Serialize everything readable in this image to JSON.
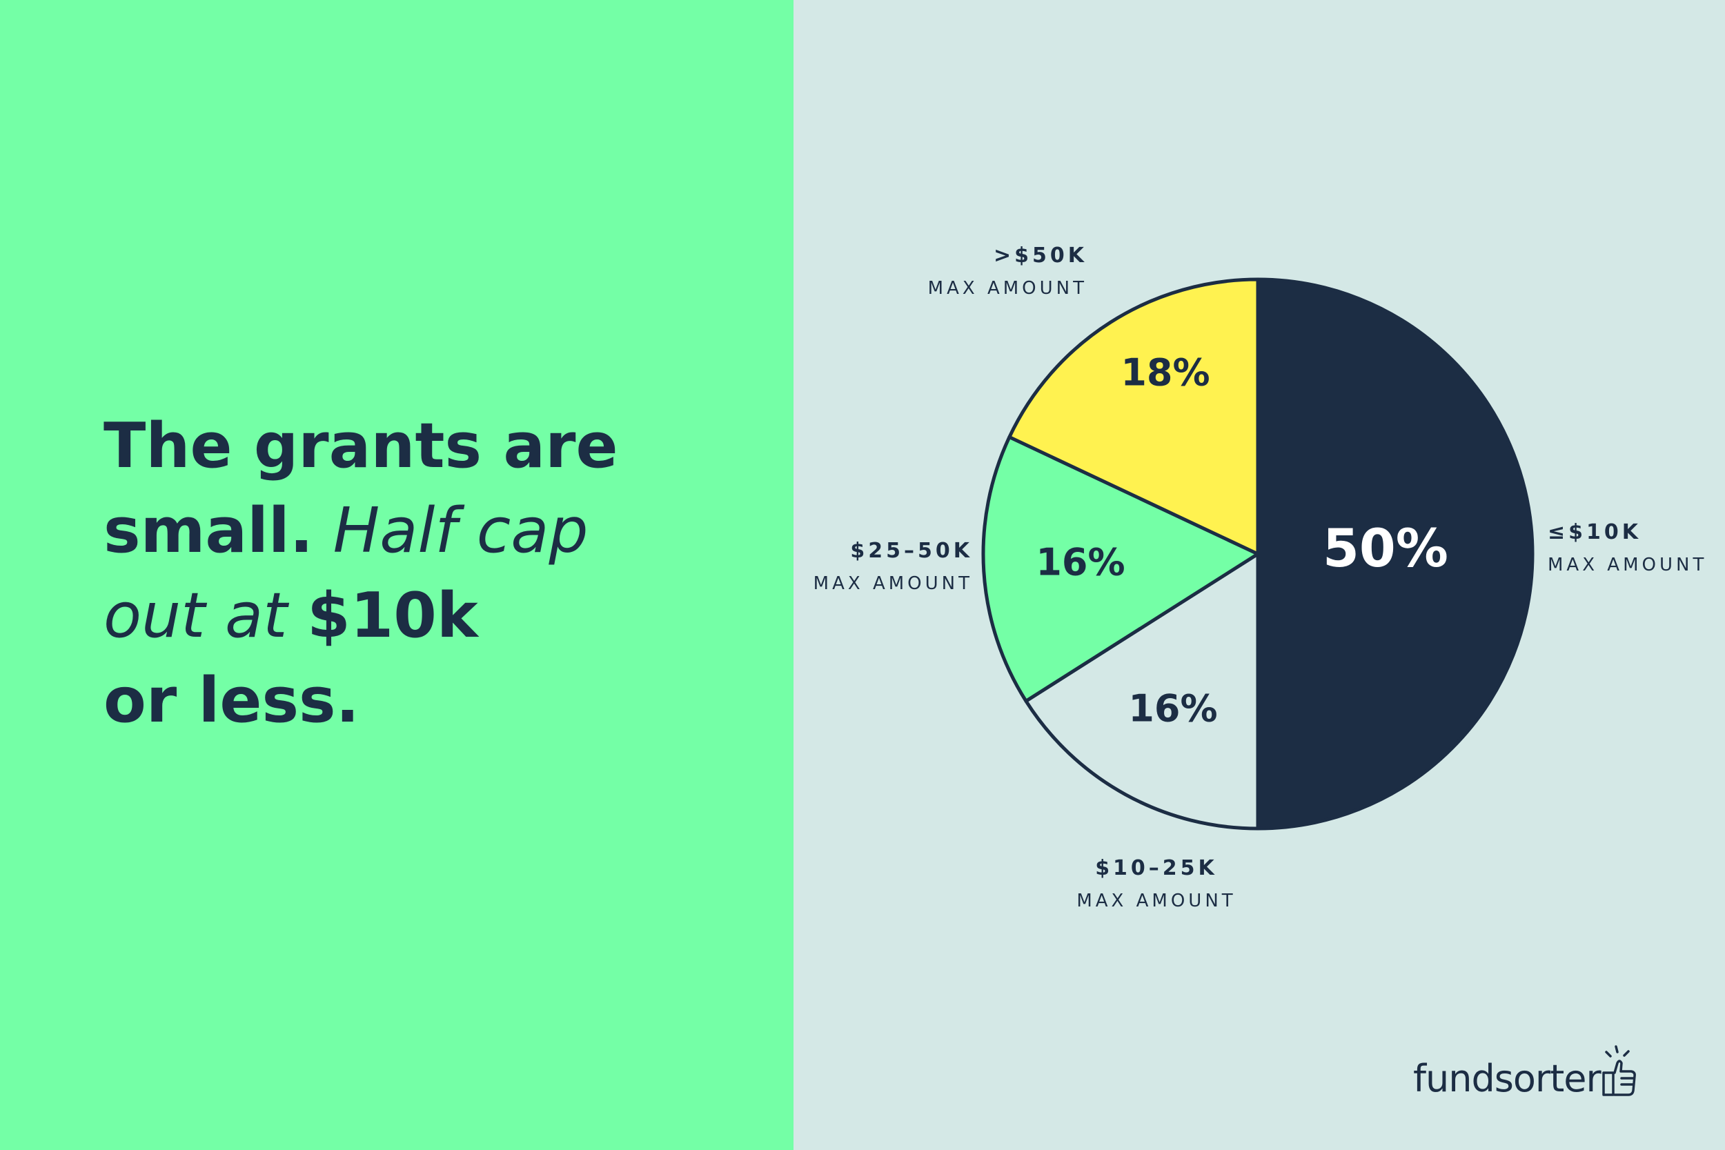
{
  "headline": {
    "line1": "The grants are",
    "line2_bold": "small.",
    "line2_light": " Half cap",
    "line3_light": "out at ",
    "line3_bold": "$10k",
    "line4_bold": "or less."
  },
  "colors": {
    "left_bg": "#74ffa6",
    "right_bg": "#d4e8e6",
    "navy": "#1c2d44",
    "yellow": "#fff250",
    "green": "#74ffa6",
    "pale": "#d4e8e6",
    "white": "#ffffff"
  },
  "chart_data": {
    "type": "pie",
    "start": "12 o'clock, clockwise",
    "slices": [
      {
        "category": "≤$10K",
        "sublabel": "MAX AMOUNT",
        "value": 50,
        "label": "50%",
        "color": "#1c2d44",
        "text_color": "#ffffff"
      },
      {
        "category": "$10–25K",
        "sublabel": "MAX AMOUNT",
        "value": 16,
        "label": "16%",
        "color": "#d4e8e6",
        "text_color": "#1c2d44"
      },
      {
        "category": "$25–50K",
        "sublabel": "MAX AMOUNT",
        "value": 16,
        "label": "16%",
        "color": "#74ffa6",
        "text_color": "#1c2d44"
      },
      {
        "category": ">$50K",
        "sublabel": "MAX AMOUNT",
        "value": 18,
        "label": "18%",
        "color": "#fff250",
        "text_color": "#1c2d44"
      }
    ]
  },
  "logo": {
    "text": "fundsorter",
    "icon": "thumbs-up-icon"
  }
}
